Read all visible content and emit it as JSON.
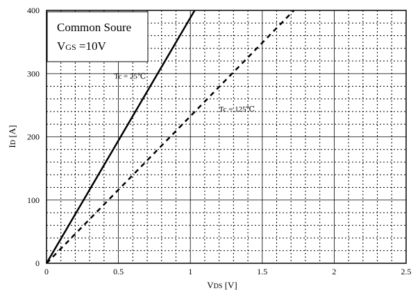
{
  "chart_data": {
    "type": "line",
    "legend_box": {
      "line1": "Common Soure",
      "line2_main": "V",
      "line2_sub": "GS",
      "line2_rest": " =10V"
    },
    "xlabel": {
      "main": "V",
      "sub": "DS",
      "rest": " [V]"
    },
    "ylabel": {
      "main": "I",
      "sub": "D",
      "rest": " [A]"
    },
    "xlim": [
      0,
      2.5
    ],
    "ylim": [
      0,
      400
    ],
    "x_ticks": [
      0,
      0.5,
      1,
      1.5,
      2,
      2.5
    ],
    "x_tick_labels": [
      "0",
      "0.5",
      "1",
      "1.5",
      "2",
      "2.5"
    ],
    "y_ticks": [
      0,
      100,
      200,
      300,
      400
    ],
    "y_tick_labels": [
      "0",
      "100",
      "200",
      "300",
      "400"
    ],
    "x_minor_step": 0.1,
    "y_minor_step": 20,
    "grid": true,
    "series": [
      {
        "label": "Tc = 25℃",
        "style": "solid",
        "points": [
          [
            0,
            0
          ],
          [
            1.03,
            400
          ]
        ]
      },
      {
        "label": "Tc = 125℃",
        "style": "dashed",
        "points": [
          [
            0,
            0
          ],
          [
            1.72,
            400
          ]
        ]
      }
    ],
    "annotations": [
      {
        "text": "Tc = 25℃",
        "x": 0.47,
        "y": 292
      },
      {
        "text": "Tc = 125℃",
        "x": 1.2,
        "y": 240
      }
    ]
  }
}
